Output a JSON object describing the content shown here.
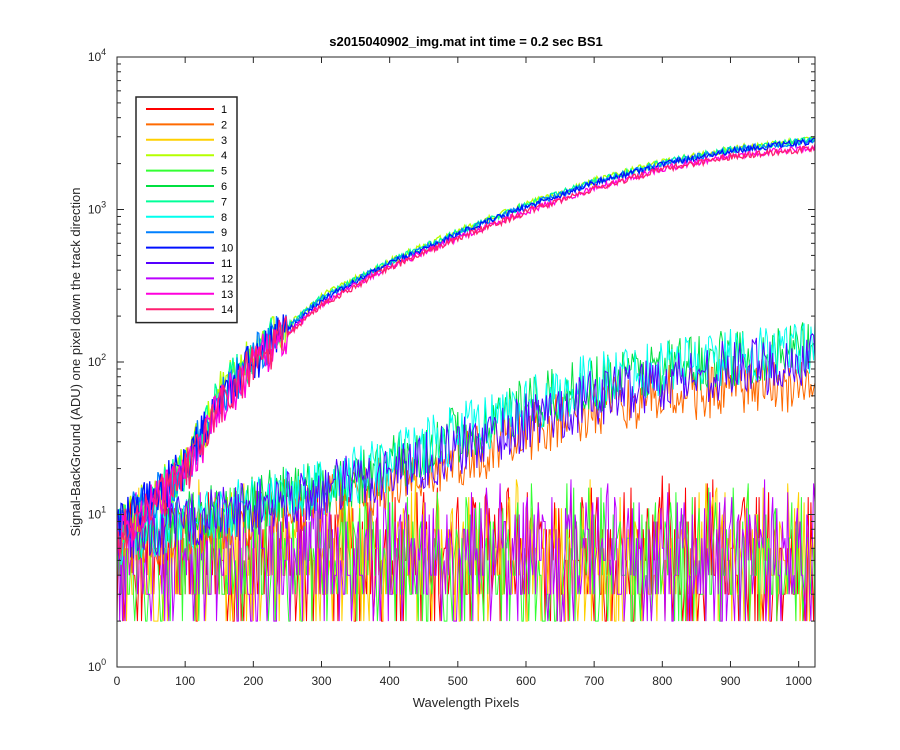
{
  "chart_data": {
    "type": "line",
    "title": "s2015040902_img.mat int time = 0.2 sec   BS1",
    "xlabel": "Wavelength Pixels",
    "ylabel": "Signal-BackGround (ADU) one pixel down the track direction",
    "xlim": [
      0,
      1024
    ],
    "ylim": [
      1,
      10000
    ],
    "yscale": "log",
    "x_ticks": [
      "0",
      "100",
      "200",
      "300",
      "400",
      "500",
      "600",
      "700",
      "800",
      "900",
      "1000"
    ],
    "y_ticks": [
      {
        "base": "10",
        "exp": "0"
      },
      {
        "base": "10",
        "exp": "1"
      },
      {
        "base": "10",
        "exp": "2"
      },
      {
        "base": "10",
        "exp": "3"
      },
      {
        "base": "10",
        "exp": "4"
      }
    ],
    "grid": false,
    "legend_position": "top-left",
    "series": [
      {
        "name": "1",
        "color": "#ff0000",
        "level": "noise",
        "anchors": [
          [
            0,
            6
          ],
          [
            1024,
            6
          ]
        ]
      },
      {
        "name": "2",
        "color": "#ff6a00",
        "level": "medium",
        "anchors": [
          [
            0,
            6
          ],
          [
            100,
            8
          ],
          [
            200,
            10
          ],
          [
            300,
            12
          ],
          [
            400,
            16
          ],
          [
            500,
            22
          ],
          [
            600,
            34
          ],
          [
            700,
            48
          ],
          [
            800,
            62
          ],
          [
            900,
            66
          ],
          [
            1024,
            72
          ]
        ]
      },
      {
        "name": "3",
        "color": "#ffd000",
        "level": "noise",
        "anchors": [
          [
            0,
            6
          ],
          [
            1024,
            6
          ]
        ]
      },
      {
        "name": "4",
        "color": "#b5ff00",
        "level": "high",
        "anchors": [
          [
            0,
            8
          ],
          [
            100,
            20
          ],
          [
            150,
            60
          ],
          [
            200,
            110
          ],
          [
            300,
            270
          ],
          [
            400,
            460
          ],
          [
            500,
            720
          ],
          [
            600,
            1080
          ],
          [
            700,
            1550
          ],
          [
            800,
            2050
          ],
          [
            900,
            2500
          ],
          [
            1024,
            2900
          ]
        ]
      },
      {
        "name": "5",
        "color": "#33ff33",
        "level": "noise",
        "anchors": [
          [
            0,
            6
          ],
          [
            1024,
            6
          ]
        ]
      },
      {
        "name": "6",
        "color": "#00e040",
        "level": "medium",
        "anchors": [
          [
            0,
            7
          ],
          [
            100,
            9
          ],
          [
            200,
            12
          ],
          [
            300,
            15
          ],
          [
            400,
            21
          ],
          [
            500,
            33
          ],
          [
            600,
            50
          ],
          [
            700,
            72
          ],
          [
            800,
            92
          ],
          [
            900,
            105
          ],
          [
            1024,
            120
          ]
        ]
      },
      {
        "name": "7",
        "color": "#00ff99",
        "level": "high",
        "anchors": [
          [
            0,
            8
          ],
          [
            100,
            20
          ],
          [
            150,
            60
          ],
          [
            200,
            110
          ],
          [
            300,
            265
          ],
          [
            400,
            455
          ],
          [
            500,
            710
          ],
          [
            600,
            1070
          ],
          [
            700,
            1530
          ],
          [
            800,
            2030
          ],
          [
            900,
            2480
          ],
          [
            1024,
            2880
          ]
        ]
      },
      {
        "name": "8",
        "color": "#00ffee",
        "level": "medium",
        "anchors": [
          [
            0,
            7
          ],
          [
            100,
            9
          ],
          [
            200,
            12
          ],
          [
            300,
            15
          ],
          [
            400,
            22
          ],
          [
            500,
            34
          ],
          [
            600,
            52
          ],
          [
            700,
            75
          ],
          [
            800,
            95
          ],
          [
            900,
            108
          ],
          [
            1024,
            122
          ]
        ]
      },
      {
        "name": "9",
        "color": "#0080ff",
        "level": "high",
        "anchors": [
          [
            0,
            8
          ],
          [
            100,
            20
          ],
          [
            150,
            58
          ],
          [
            200,
            105
          ],
          [
            300,
            260
          ],
          [
            400,
            445
          ],
          [
            500,
            700
          ],
          [
            600,
            1050
          ],
          [
            700,
            1500
          ],
          [
            800,
            2000
          ],
          [
            900,
            2450
          ],
          [
            1024,
            2850
          ]
        ]
      },
      {
        "name": "10",
        "color": "#0010ff",
        "level": "high",
        "anchors": [
          [
            0,
            8
          ],
          [
            100,
            20
          ],
          [
            150,
            55
          ],
          [
            200,
            100
          ],
          [
            300,
            255
          ],
          [
            400,
            440
          ],
          [
            500,
            690
          ],
          [
            600,
            1040
          ],
          [
            700,
            1490
          ],
          [
            800,
            1980
          ],
          [
            900,
            2420
          ],
          [
            1024,
            2800
          ]
        ]
      },
      {
        "name": "11",
        "color": "#5500ff",
        "level": "medium",
        "anchors": [
          [
            0,
            7
          ],
          [
            100,
            9
          ],
          [
            200,
            11
          ],
          [
            300,
            14
          ],
          [
            400,
            19
          ],
          [
            500,
            27
          ],
          [
            600,
            40
          ],
          [
            700,
            58
          ],
          [
            800,
            75
          ],
          [
            900,
            90
          ],
          [
            1024,
            102
          ]
        ]
      },
      {
        "name": "12",
        "color": "#bb00ff",
        "level": "noise",
        "anchors": [
          [
            0,
            6
          ],
          [
            1024,
            6
          ]
        ]
      },
      {
        "name": "13",
        "color": "#ff00dd",
        "level": "high",
        "anchors": [
          [
            0,
            7
          ],
          [
            100,
            18
          ],
          [
            150,
            50
          ],
          [
            200,
            95
          ],
          [
            300,
            240
          ],
          [
            400,
            420
          ],
          [
            500,
            650
          ],
          [
            600,
            970
          ],
          [
            700,
            1380
          ],
          [
            800,
            1850
          ],
          [
            900,
            2250
          ],
          [
            1024,
            2550
          ]
        ]
      },
      {
        "name": "14",
        "color": "#ff1f70",
        "level": "high",
        "anchors": [
          [
            0,
            7
          ],
          [
            100,
            18
          ],
          [
            150,
            50
          ],
          [
            200,
            95
          ],
          [
            300,
            238
          ],
          [
            400,
            415
          ],
          [
            500,
            645
          ],
          [
            600,
            960
          ],
          [
            700,
            1370
          ],
          [
            800,
            1830
          ],
          [
            900,
            2230
          ],
          [
            1024,
            2520
          ]
        ]
      }
    ]
  }
}
